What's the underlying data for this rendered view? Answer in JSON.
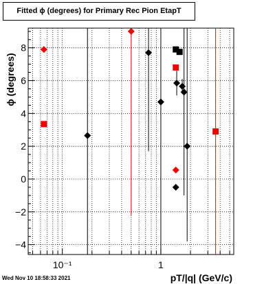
{
  "chart_data": {
    "type": "scatter",
    "title": "Fitted ϕ (degrees) for Primary Rec Pion EtapT",
    "xlabel": "pT/|q| (GeV/c)",
    "ylabel": "ϕ (degrees)",
    "x_scale": "log",
    "xlim": [
      0.045,
      5.5
    ],
    "ylim": [
      -4.6,
      9.2
    ],
    "x_tick_labels": [
      "10⁻¹",
      "1"
    ],
    "y_ticks": [
      -4,
      -2,
      0,
      2,
      4,
      6,
      8
    ],
    "y_tick_labels": [
      "−4",
      "−2",
      "0",
      "2",
      "4",
      "6",
      "8"
    ],
    "grid": true,
    "series": [
      {
        "color": "#000000",
        "points": [
          {
            "x": 0.18,
            "y": 2.65,
            "marker": "diamond",
            "ylo": -4.6,
            "yhi": 9.2
          },
          {
            "x": 0.75,
            "y": 7.7,
            "marker": "diamond",
            "ylo": 1.7,
            "yhi": 9.2
          },
          {
            "x": 1.0,
            "y": 4.7,
            "marker": "diamond",
            "ylo": -4.6,
            "yhi": 9.2
          },
          {
            "x": 1.42,
            "y": 7.9,
            "marker": "square",
            "ylo": 7.9,
            "yhi": 7.9
          },
          {
            "x": 1.55,
            "y": 7.75,
            "marker": "square",
            "ylo": 7.75,
            "yhi": 7.75
          },
          {
            "x": 1.45,
            "y": 5.85,
            "marker": "diamond",
            "ylo": 5.1,
            "yhi": 6.6
          },
          {
            "x": 1.65,
            "y": 5.65,
            "marker": "diamond",
            "ylo": 5.2,
            "yhi": 6.1
          },
          {
            "x": 1.72,
            "y": 5.3,
            "marker": "diamond",
            "ylo": -1.0,
            "yhi": 9.2
          },
          {
            "x": 1.85,
            "y": 2.0,
            "marker": "diamond",
            "ylo": -3.8,
            "yhi": 9.2
          },
          {
            "x": 1.42,
            "y": -0.5,
            "marker": "diamond",
            "ylo": -0.5,
            "yhi": -0.5
          }
        ]
      },
      {
        "color": "#ee0000",
        "points": [
          {
            "x": 0.065,
            "y": 7.9,
            "marker": "diamond",
            "ylo": 7.9,
            "yhi": 7.9
          },
          {
            "x": 0.065,
            "y": 3.35,
            "marker": "square",
            "ylo": 3.35,
            "yhi": 3.35
          },
          {
            "x": 0.5,
            "y": 9.0,
            "marker": "diamond",
            "ylo": -2.2,
            "yhi": 9.2
          },
          {
            "x": 1.42,
            "y": 6.8,
            "marker": "square",
            "ylo": 6.8,
            "yhi": 6.8
          },
          {
            "x": 1.42,
            "y": 0.55,
            "marker": "diamond",
            "ylo": 0.55,
            "yhi": 0.55
          },
          {
            "x": 3.6,
            "y": 2.9,
            "marker": "square",
            "ylo": -4.6,
            "yhi": 9.2
          }
        ]
      }
    ]
  },
  "timestamp": "Wed Nov 10 18:58:33 2021"
}
